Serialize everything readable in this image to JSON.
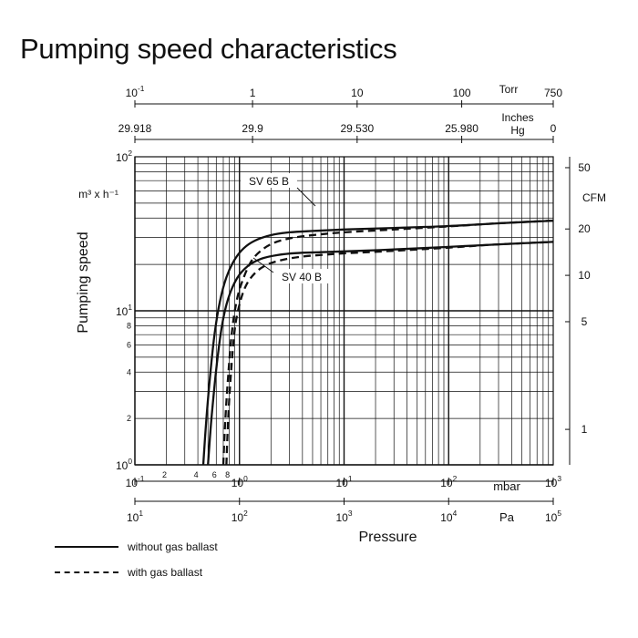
{
  "page": {
    "title": "Pumping speed characteristics"
  },
  "chart_data": {
    "type": "line",
    "x_scale": "log",
    "y_scale": "log",
    "xlim": [
      0.1,
      1000
    ],
    "ylim": [
      1,
      100
    ],
    "xlabel": "Pressure",
    "ylabel": "Pumping speed",
    "y_unit": "m³ x h⁻¹",
    "grid": true,
    "axes": {
      "mbar": {
        "unit": "mbar",
        "ticks": [
          {
            "v": 0.1,
            "base": "10",
            "exp": "-1"
          },
          {
            "v": 1,
            "base": "10",
            "exp": "0"
          },
          {
            "v": 10,
            "base": "10",
            "exp": "1"
          },
          {
            "v": 100,
            "base": "10",
            "exp": "2"
          },
          {
            "v": 1000,
            "base": "10",
            "exp": "3"
          }
        ],
        "minor_labels": [
          {
            "v": 0.2,
            "t": "2"
          },
          {
            "v": 0.4,
            "t": "4"
          },
          {
            "v": 0.6,
            "t": "6"
          },
          {
            "v": 0.8,
            "t": "8"
          }
        ]
      },
      "pa": {
        "unit": "Pa",
        "ticks": [
          {
            "v": 0.1,
            "base": "10",
            "exp": "1"
          },
          {
            "v": 1,
            "base": "10",
            "exp": "2"
          },
          {
            "v": 10,
            "base": "10",
            "exp": "3"
          },
          {
            "v": 100,
            "base": "10",
            "exp": "4"
          },
          {
            "v": 1000,
            "base": "10",
            "exp": "5"
          }
        ]
      },
      "torr": {
        "unit": "Torr",
        "ticks": [
          {
            "v": 0.1,
            "base": "10",
            "exp": "-1"
          },
          {
            "v": 1.3332,
            "t": "1"
          },
          {
            "v": 13.332,
            "t": "10"
          },
          {
            "v": 133.32,
            "t": "100"
          },
          {
            "v": 999.9,
            "t": "750"
          }
        ]
      },
      "inches_hg": {
        "unit_line1": "Inches",
        "unit_line2": "Hg",
        "ticks": [
          {
            "v": 0.1,
            "t": "29.918"
          },
          {
            "v": 1.3332,
            "t": "29.9"
          },
          {
            "v": 13.332,
            "t": "29.530"
          },
          {
            "v": 133.32,
            "t": "25.980"
          },
          {
            "v": 1000,
            "t": "0"
          }
        ]
      },
      "y_left": {
        "ticks": [
          {
            "v": 1,
            "base": "10",
            "exp": "0"
          },
          {
            "v": 10,
            "base": "10",
            "exp": "1"
          },
          {
            "v": 100,
            "base": "10",
            "exp": "2"
          }
        ],
        "minor_labels": [
          {
            "v": 2,
            "t": "2"
          },
          {
            "v": 4,
            "t": "4"
          },
          {
            "v": 6,
            "t": "6"
          },
          {
            "v": 8,
            "t": "8"
          }
        ]
      },
      "cfm": {
        "unit": "CFM",
        "ticks": [
          {
            "v": 1.699,
            "t": "1"
          },
          {
            "v": 8.495,
            "t": "5"
          },
          {
            "v": 16.99,
            "t": "10"
          },
          {
            "v": 33.98,
            "t": "20"
          },
          {
            "v": 84.95,
            "t": "50"
          }
        ]
      }
    },
    "series": [
      {
        "name": "SV 65 B",
        "gas_ballast": false,
        "style": "solid",
        "x": [
          0.45,
          0.48,
          0.52,
          0.58,
          0.65,
          0.75,
          0.9,
          1.1,
          1.4,
          2,
          3,
          5,
          10,
          30,
          100,
          300,
          1000
        ],
        "y": [
          1,
          1.9,
          3.6,
          7.2,
          11.5,
          16.5,
          21.5,
          25.5,
          28.5,
          31,
          32.3,
          33,
          33.7,
          34.5,
          35.5,
          37,
          38.5
        ]
      },
      {
        "name": "SV 65 B",
        "gas_ballast": true,
        "style": "dashed",
        "x": [
          0.7,
          0.73,
          0.78,
          0.85,
          0.95,
          1.1,
          1.3,
          1.6,
          2.1,
          3,
          5,
          10,
          30,
          100,
          300,
          1000
        ],
        "y": [
          1,
          1.9,
          3.8,
          7.5,
          12,
          16.5,
          21,
          24.5,
          27.5,
          29.5,
          31,
          32.3,
          33.7,
          35.3,
          37,
          38.5
        ]
      },
      {
        "name": "SV 40 B",
        "gas_ballast": false,
        "style": "solid",
        "x": [
          0.5,
          0.54,
          0.6,
          0.68,
          0.78,
          0.95,
          1.2,
          1.6,
          2.3,
          3.5,
          6,
          10,
          30,
          100,
          300,
          1000
        ],
        "y": [
          1,
          2,
          4.2,
          8,
          12,
          16.3,
          19.5,
          21.7,
          23,
          23.7,
          24,
          24.3,
          25,
          26,
          27,
          28
        ]
      },
      {
        "name": "SV 40 B",
        "gas_ballast": true,
        "style": "dashed",
        "x": [
          0.75,
          0.78,
          0.83,
          0.9,
          1.0,
          1.15,
          1.4,
          1.8,
          2.5,
          4,
          7,
          10,
          30,
          100,
          300,
          1000
        ],
        "y": [
          1,
          2,
          4,
          7.5,
          11,
          14.5,
          17.5,
          19.8,
          21.3,
          22.5,
          23.2,
          23.6,
          24.5,
          25.7,
          27,
          28
        ]
      }
    ],
    "annotations": [
      {
        "text": "SV 65 B",
        "points_to_series": 0
      },
      {
        "text": "SV 40 B",
        "points_to_series": 2
      }
    ]
  },
  "legend": [
    {
      "label": "without gas ballast",
      "style": "solid"
    },
    {
      "label": "with gas ballast",
      "style": "dashed"
    }
  ]
}
